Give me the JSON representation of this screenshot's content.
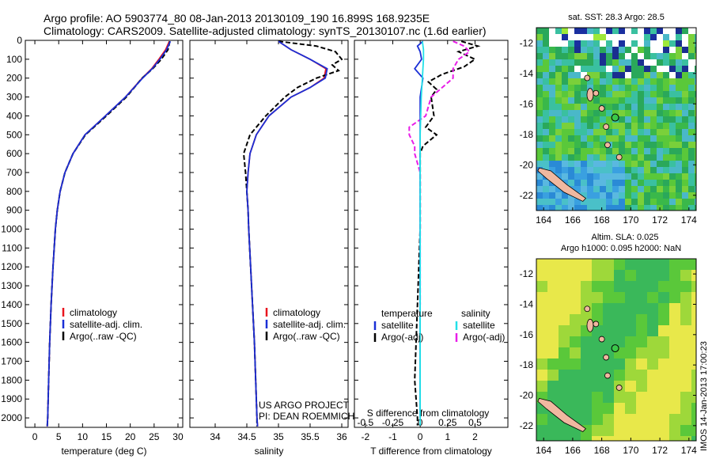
{
  "header": {
    "line1": "Argo profile: AO 5903774_80 08-Jan-2013 20130109_190 16.899S 168.9235E",
    "line2": "Climatology: CARS2009. Satellite-adjusted climatology: synTS_20130107.nc (1.6d earlier)"
  },
  "footer_vertical": "IMOS 14-Jan-2013 17:00:23",
  "project": {
    "line1": "US ARGO PROJECT",
    "line2": "PI: DEAN ROEMMICH"
  },
  "colors": {
    "climatology": "#e8141e",
    "satellite": "#1a2fd6",
    "argo": "#000000",
    "sat_salinity": "#22e0e8",
    "argo_salinity": "#e81ee8"
  },
  "chart_data": [
    {
      "type": "line",
      "xlabel": "temperature (deg C)",
      "ylabel": "",
      "xlim": [
        -2,
        31
      ],
      "ylim": [
        2050,
        0
      ],
      "xticks": [
        0,
        5,
        10,
        15,
        20,
        25,
        30
      ],
      "yticks": [
        0,
        100,
        200,
        300,
        400,
        500,
        600,
        700,
        800,
        900,
        1000,
        1100,
        1200,
        1300,
        1400,
        1500,
        1600,
        1700,
        1800,
        1900,
        2000
      ],
      "legend": [
        "climatology",
        "satellite-adj. clim.",
        "Argo(..raw -QC)"
      ],
      "legend_position": "bottom-center",
      "series": [
        {
          "name": "climatology",
          "depth": [
            5,
            50,
            100,
            150,
            200,
            300,
            400,
            500,
            600,
            700,
            800,
            900,
            1000,
            1200,
            1400,
            1600,
            1800,
            2000,
            2045
          ],
          "values": [
            28.2,
            27.4,
            26.0,
            24.5,
            22.5,
            19.0,
            14.8,
            10.5,
            8.0,
            6.3,
            5.3,
            4.7,
            4.3,
            3.8,
            3.4,
            3.1,
            2.9,
            2.7,
            2.6
          ]
        },
        {
          "name": "satellite-adj. clim.",
          "depth": [
            5,
            50,
            100,
            150,
            200,
            300,
            400,
            500,
            600,
            700,
            800,
            900,
            1000,
            1200,
            1400,
            1600,
            1800,
            2000,
            2045
          ],
          "values": [
            28.4,
            27.6,
            26.2,
            24.6,
            22.6,
            19.0,
            14.8,
            10.5,
            8.0,
            6.3,
            5.3,
            4.7,
            4.3,
            3.8,
            3.4,
            3.1,
            2.9,
            2.7,
            2.6
          ]
        },
        {
          "name": "Argo(..raw -QC)",
          "depth": [
            5,
            50,
            100,
            150,
            200,
            300,
            400,
            500,
            600,
            700,
            800,
            900,
            1000,
            1200,
            1400,
            1600,
            1800,
            2000,
            2045
          ],
          "values": [
            28.3,
            27.9,
            26.5,
            24.7,
            22.5,
            19.2,
            15.0,
            10.6,
            8.0,
            6.3,
            5.3,
            4.7,
            4.3,
            3.8,
            3.4,
            3.1,
            2.9,
            2.7,
            2.6
          ]
        }
      ]
    },
    {
      "type": "line",
      "xlabel": "salinity",
      "ylabel": "",
      "xlim": [
        33.6,
        36.1
      ],
      "ylim": [
        2050,
        0
      ],
      "xticks": [
        34,
        34.5,
        35,
        35.5,
        36
      ],
      "legend": [
        "climatology",
        "satellite-adj. clim.",
        "Argo(..raw -QC)"
      ],
      "legend_position": "bottom-center",
      "series": [
        {
          "name": "climatology",
          "depth": [
            5,
            50,
            100,
            150,
            200,
            250,
            300,
            400,
            500,
            600,
            700,
            800,
            900,
            1000,
            1200,
            1400,
            1600,
            1800,
            2000,
            2045
          ],
          "values": [
            35.0,
            35.2,
            35.5,
            35.75,
            35.72,
            35.5,
            35.2,
            34.85,
            34.65,
            34.55,
            34.52,
            34.5,
            34.52,
            34.53,
            34.56,
            34.59,
            34.62,
            34.64,
            34.66,
            34.67
          ]
        },
        {
          "name": "satellite-adj. clim.",
          "depth": [
            5,
            50,
            100,
            150,
            200,
            250,
            300,
            400,
            500,
            600,
            700,
            800,
            900,
            1000,
            1200,
            1400,
            1600,
            1800,
            2000,
            2045
          ],
          "values": [
            35.0,
            35.2,
            35.5,
            35.77,
            35.74,
            35.5,
            35.2,
            34.85,
            34.65,
            34.55,
            34.52,
            34.5,
            34.52,
            34.53,
            34.56,
            34.59,
            34.62,
            34.64,
            34.66,
            34.67
          ]
        },
        {
          "name": "Argo(..raw -QC)",
          "depth": [
            5,
            30,
            60,
            100,
            130,
            160,
            200,
            250,
            300,
            400,
            500,
            600,
            700,
            800,
            900,
            1000,
            1200,
            1400,
            1600,
            1800,
            2000,
            2045
          ],
          "values": [
            35.0,
            35.6,
            35.9,
            36.0,
            35.85,
            35.95,
            35.6,
            35.3,
            35.1,
            34.8,
            34.55,
            34.45,
            34.48,
            34.5,
            34.52,
            34.53,
            34.56,
            34.59,
            34.62,
            34.64,
            34.66,
            34.66
          ]
        }
      ]
    },
    {
      "type": "line",
      "xlabel": "T difference from climatology",
      "xlabel_top": "S difference from climatology",
      "xlim": [
        -2.4,
        3.2
      ],
      "ylim": [
        2050,
        0
      ],
      "xticks": [
        -2,
        -1,
        0,
        1,
        2
      ],
      "xticks_top": [
        -0.5,
        -0.25,
        0,
        0.25,
        0.5
      ],
      "legend_titles": [
        "temperature",
        "salinity"
      ],
      "legend": [
        "satellite",
        "Argo(-adj)",
        "satellite",
        "Argo(-adj)"
      ],
      "legend_position": "bottom-center",
      "series": [
        {
          "name": "temperature satellite",
          "depth": [
            5,
            30,
            60,
            100,
            150,
            200,
            300,
            400,
            500,
            600,
            800,
            1000,
            1400,
            2000
          ],
          "values": [
            0.1,
            -0.1,
            0.0,
            0.05,
            -0.2,
            0.1,
            0.0,
            0.0,
            0.0,
            0.0,
            0.0,
            0.0,
            0.0,
            0.0
          ]
        },
        {
          "name": "temperature Argo(-adj)",
          "depth": [
            5,
            30,
            60,
            100,
            140,
            180,
            220,
            260,
            300,
            400,
            460,
            500,
            560,
            600,
            800,
            1000,
            1400,
            1800,
            2000,
            2040
          ],
          "values": [
            1.5,
            2.1,
            1.4,
            2.0,
            1.6,
            0.8,
            0.3,
            0.6,
            0.4,
            0.5,
            0.2,
            0.6,
            0.1,
            0.0,
            0.0,
            0.0,
            -0.1,
            -0.2,
            -0.1,
            -0.1
          ]
        },
        {
          "name": "salinity satellite",
          "depth": [
            5,
            50,
            100,
            200,
            300,
            500,
            700,
            1000,
            1400,
            1800,
            2040
          ],
          "values": [
            0.02,
            0.03,
            0.03,
            0.02,
            0.01,
            0.0,
            0.0,
            0.0,
            0.0,
            0.0,
            0.0
          ]
        },
        {
          "name": "salinity Argo(-adj)",
          "depth": [
            5,
            30,
            60,
            100,
            150,
            200,
            250,
            300,
            400,
            460,
            500,
            560,
            600,
            700,
            1000,
            1400
          ],
          "values": [
            0.3,
            0.4,
            0.45,
            0.35,
            0.3,
            0.3,
            0.2,
            0.1,
            0.05,
            -0.1,
            -0.1,
            -0.05,
            -0.05,
            0.0,
            0.0,
            0.0
          ]
        }
      ]
    },
    {
      "type": "heatmap",
      "title": "sat. SST: 28.3 Argo: 28.5",
      "xticks": [
        164,
        166,
        168,
        170,
        172,
        174
      ],
      "yticks": [
        -12,
        -14,
        -16,
        -18,
        -20,
        -22
      ],
      "xlim": [
        163.5,
        174.5
      ],
      "ylim": [
        -23,
        -11
      ]
    },
    {
      "type": "heatmap",
      "title_lines": [
        "Altim. SLA: 0.025",
        "Argo h1000: 0.095 h2000: NaN"
      ],
      "xticks": [
        164,
        166,
        168,
        170,
        172,
        174
      ],
      "yticks": [
        -12,
        -14,
        -16,
        -18,
        -20,
        -22
      ],
      "xlim": [
        163.5,
        174.5
      ],
      "ylim": [
        -23,
        -11
      ]
    }
  ]
}
